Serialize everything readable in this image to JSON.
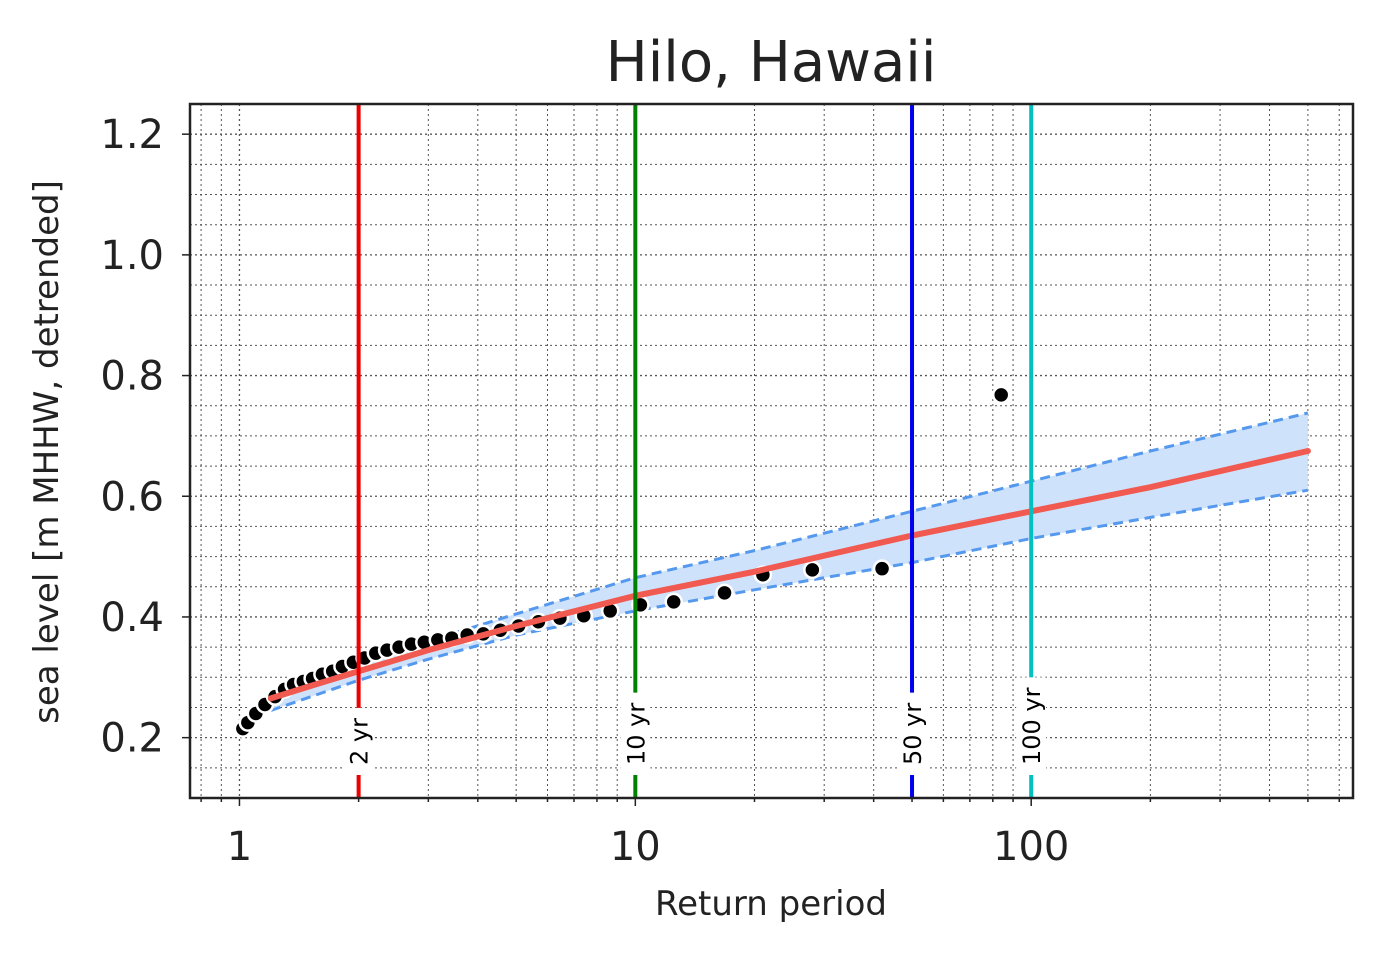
{
  "chart_data": {
    "type": "scatter",
    "title": "Hilo, Hawaii",
    "xlabel": "Return period",
    "ylabel": "sea level [m MHHW, detrended]",
    "xscale": "log",
    "xlim": [
      0.75,
      650
    ],
    "ylim": [
      0.1,
      1.25
    ],
    "xticks": [
      1,
      10,
      100
    ],
    "xtick_labels": [
      "1",
      "10",
      "100"
    ],
    "yticks": [
      0.2,
      0.4,
      0.6,
      0.8,
      1.0,
      1.2
    ],
    "ytick_labels": [
      "0.2",
      "0.4",
      "0.6",
      "0.8",
      "1.0",
      "1.2"
    ],
    "grid": true,
    "colors": {
      "fit": "#f15a50",
      "ci_line": "#5599ee",
      "ci_fill": "#cfe2fb",
      "points": "#000000"
    },
    "observations": {
      "x": [
        1.02,
        1.05,
        1.1,
        1.16,
        1.23,
        1.3,
        1.37,
        1.45,
        1.53,
        1.62,
        1.72,
        1.82,
        1.94,
        2.07,
        2.21,
        2.36,
        2.53,
        2.72,
        2.93,
        3.17,
        3.44,
        3.76,
        4.13,
        4.56,
        5.07,
        5.69,
        6.45,
        7.41,
        8.64,
        10.3,
        12.5,
        16.8,
        21.0,
        28.0,
        42.0,
        84.0
      ],
      "y": [
        0.215,
        0.225,
        0.24,
        0.255,
        0.268,
        0.28,
        0.288,
        0.293,
        0.298,
        0.305,
        0.31,
        0.318,
        0.325,
        0.332,
        0.34,
        0.345,
        0.35,
        0.355,
        0.358,
        0.362,
        0.365,
        0.37,
        0.372,
        0.378,
        0.385,
        0.392,
        0.398,
        0.402,
        0.41,
        0.42,
        0.425,
        0.44,
        0.47,
        0.478,
        0.48,
        0.768
      ]
    },
    "fit": {
      "x": [
        1.2,
        1.5,
        2,
        3,
        5,
        10,
        20,
        50,
        100,
        200,
        500
      ],
      "y": [
        0.265,
        0.285,
        0.31,
        0.345,
        0.385,
        0.435,
        0.475,
        0.535,
        0.575,
        0.615,
        0.675
      ]
    },
    "ci_upper": {
      "x": [
        1.2,
        2,
        3,
        5,
        10,
        20,
        50,
        100,
        200,
        500
      ],
      "y": [
        0.27,
        0.325,
        0.36,
        0.405,
        0.465,
        0.51,
        0.575,
        0.625,
        0.675,
        0.738
      ]
    },
    "ci_lower": {
      "x": [
        1.2,
        2,
        3,
        5,
        10,
        20,
        50,
        100,
        200,
        500
      ],
      "y": [
        0.245,
        0.295,
        0.33,
        0.37,
        0.41,
        0.445,
        0.49,
        0.53,
        0.565,
        0.61
      ]
    },
    "return_levels": [
      {
        "period": 2,
        "label": "2 yr",
        "color": "#ee0000"
      },
      {
        "period": 10,
        "label": "10 yr",
        "color": "#008000"
      },
      {
        "period": 50,
        "label": "50 yr",
        "color": "#0000ee"
      },
      {
        "period": 100,
        "label": "100 yr",
        "color": "#00c0c0"
      }
    ]
  }
}
